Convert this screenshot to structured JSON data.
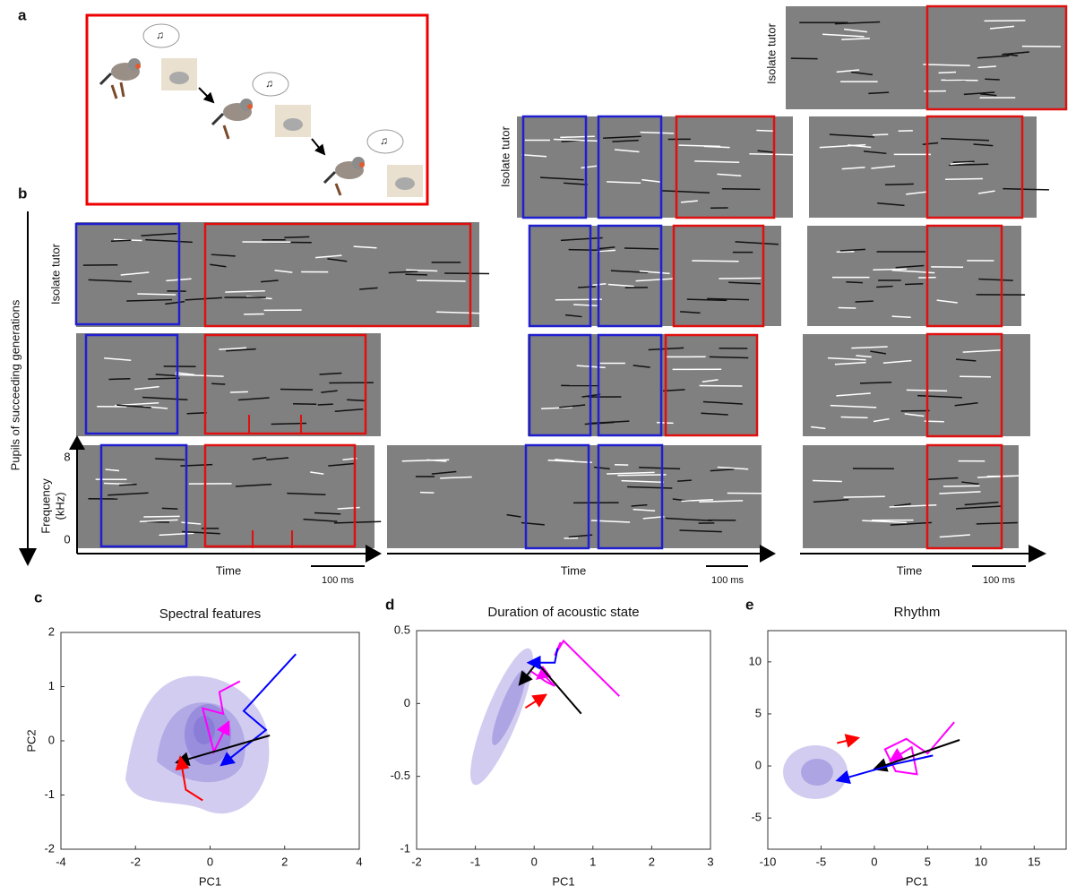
{
  "panel_labels": [
    "a",
    "b",
    "c",
    "d",
    "e"
  ],
  "panel_b": {
    "tutor_labels": [
      "Isolate tutor",
      "Isolate tutor",
      "Isolate tutor"
    ],
    "generation_axis": "Pupils of succeeding generations",
    "frequency_label": [
      "Frequency",
      "(kHz)"
    ],
    "frequency_ticks": [
      8,
      0
    ],
    "time_labels": [
      "Time",
      "Time",
      "Time"
    ],
    "scale_bars": [
      "100 ms",
      "100 ms",
      "100 ms"
    ]
  },
  "chart_data": [
    {
      "type": "scatter",
      "title": "Spectral features",
      "xlabel": "PC1",
      "ylabel": "PC2",
      "xlim": [
        -4,
        4
      ],
      "ylim": [
        -2,
        2
      ],
      "xticks": [
        -4,
        -2,
        0,
        2,
        4
      ],
      "yticks": [
        -2,
        -1,
        0,
        1,
        2
      ],
      "series": [
        {
          "color": "#0000ff",
          "x": [
            2.3,
            0.9,
            1.5,
            0.3
          ],
          "y": [
            1.6,
            0.55,
            0.2,
            -0.45
          ]
        },
        {
          "color": "#ff00ff",
          "x": [
            0.8,
            0.25,
            0.35,
            -0.2,
            0.1,
            0.5
          ],
          "y": [
            1.1,
            0.9,
            0.5,
            0.6,
            -0.2,
            0.35
          ]
        },
        {
          "color": "#000000",
          "x": [
            1.6,
            -0.9
          ],
          "y": [
            0.1,
            -0.4
          ]
        },
        {
          "color": "#ff0000",
          "x": [
            -0.2,
            -0.65,
            -0.8
          ],
          "y": [
            -1.1,
            -0.9,
            -0.3
          ]
        }
      ]
    },
    {
      "type": "scatter",
      "title": "Duration of acoustic state",
      "xlabel": "PC1",
      "xlim": [
        -2,
        3
      ],
      "ylim": [
        -1,
        0.5
      ],
      "xticks": [
        -2,
        -1,
        0,
        1,
        2,
        3
      ],
      "yticks": [
        -1,
        -0.5,
        0,
        0.5
      ],
      "series": [
        {
          "color": "#ff00ff",
          "x": [
            1.45,
            0.5,
            0.35,
            0.45,
            null,
            -0.05,
            0.2,
            0.35,
            0.15,
            0.05
          ],
          "y": [
            0.05,
            0.43,
            0.33,
            0.42,
            null,
            0.22,
            0.15,
            0.12,
            0.2,
            0.17
          ]
        },
        {
          "color": "#000000",
          "x": [
            0.8,
            0.05,
            -0.25
          ],
          "y": [
            -0.07,
            0.28,
            0.13
          ]
        },
        {
          "color": "#0000ff",
          "x": [
            0.4,
            0.35,
            -0.1
          ],
          "y": [
            0.38,
            0.28,
            0.28
          ]
        },
        {
          "color": "#ff0000",
          "x": [
            -0.15,
            0.2
          ],
          "y": [
            -0.03,
            0.06
          ]
        }
      ]
    },
    {
      "type": "scatter",
      "title": "Rhythm",
      "xlabel": "PC1",
      "xlim": [
        -10,
        18
      ],
      "ylim": [
        -8,
        13
      ],
      "xticks": [
        -10,
        -5,
        0,
        5,
        10,
        15
      ],
      "yticks": [
        -5,
        0,
        5,
        10
      ],
      "series": [
        {
          "color": "#ff00ff",
          "x": [
            7.5,
            5,
            3,
            1,
            2,
            4,
            3.5,
            1.5
          ],
          "y": [
            4.2,
            1.2,
            2.6,
            1.6,
            -0.5,
            -0.8,
            1.8,
            0.5
          ]
        },
        {
          "color": "#000000",
          "x": [
            8,
            0
          ],
          "y": [
            2.5,
            -0.3
          ]
        },
        {
          "color": "#0000ff",
          "x": [
            5.5,
            2,
            -3.5
          ],
          "y": [
            1,
            0.2,
            -1.4
          ]
        },
        {
          "color": "#ff0000",
          "x": [
            -3.5,
            -1.5
          ],
          "y": [
            2.2,
            2.7
          ]
        }
      ]
    }
  ]
}
